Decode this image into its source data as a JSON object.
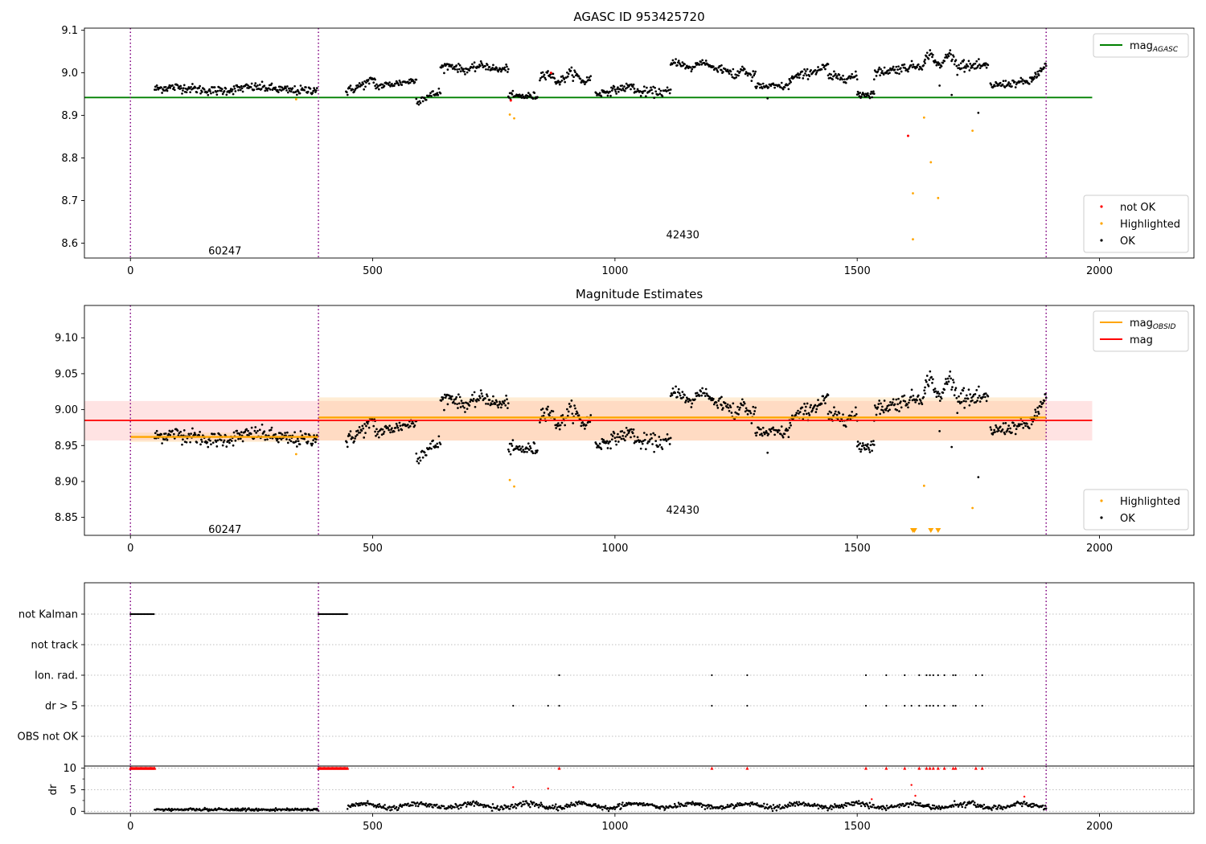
{
  "chart_data": [
    {
      "type": "scatter",
      "title": "AGASC ID 953425720",
      "xlim": [
        -95,
        2195
      ],
      "ylim": [
        8.565,
        9.105
      ],
      "x_ticks": [
        0,
        500,
        1000,
        1500,
        2000
      ],
      "y_ticks": [
        8.6,
        8.7,
        8.8,
        8.9,
        9.0,
        9.1
      ],
      "y_tick_labels": [
        "8.6",
        "8.7",
        "8.8",
        "8.9",
        "9.0",
        "9.1"
      ],
      "obsid_boundaries": [
        0,
        388,
        1890
      ],
      "obsid_labels": [
        {
          "text": "60247",
          "x": 195,
          "y": 8.583
        },
        {
          "text": "42430",
          "x": 1140,
          "y": 8.621
        }
      ],
      "reference_lines": [
        {
          "name": "mag_AGASC",
          "value": 8.942,
          "x_range": [
            -95,
            1985
          ],
          "color": "#008000"
        }
      ],
      "ok_segments": [
        {
          "x0": 50,
          "x1": 385,
          "base": 8.962,
          "noise": 0.012,
          "wave": 0.004,
          "n": 220
        },
        {
          "x0": 445,
          "x1": 505,
          "base": 8.97,
          "noise": 0.012,
          "trend": 0.03,
          "n": 40
        },
        {
          "x0": 505,
          "x1": 590,
          "base": 8.975,
          "noise": 0.01,
          "trend": 0.015,
          "n": 55
        },
        {
          "x0": 590,
          "x1": 640,
          "base": 8.945,
          "noise": 0.012,
          "trend": 0.02,
          "n": 30
        },
        {
          "x0": 640,
          "x1": 780,
          "base": 9.012,
          "noise": 0.01,
          "wave": 0.005,
          "n": 95
        },
        {
          "x0": 780,
          "x1": 840,
          "base": 8.945,
          "noise": 0.01,
          "n": 40
        },
        {
          "x0": 845,
          "x1": 950,
          "base": 8.99,
          "noise": 0.012,
          "wave": 0.01,
          "n": 70
        },
        {
          "x0": 960,
          "x1": 1040,
          "base": 8.96,
          "noise": 0.01,
          "trend": 0.02,
          "n": 55
        },
        {
          "x0": 1040,
          "x1": 1115,
          "base": 8.955,
          "noise": 0.012,
          "n": 45
        },
        {
          "x0": 1115,
          "x1": 1220,
          "base": 9.018,
          "noise": 0.01,
          "wave": 0.008,
          "n": 70
        },
        {
          "x0": 1220,
          "x1": 1290,
          "base": 9.0,
          "noise": 0.012,
          "wave": 0.01,
          "n": 45
        },
        {
          "x0": 1290,
          "x1": 1360,
          "base": 8.968,
          "noise": 0.01,
          "n": 45
        },
        {
          "x0": 1360,
          "x1": 1440,
          "base": 9.0,
          "noise": 0.012,
          "trend": 0.03,
          "n": 55
        },
        {
          "x0": 1440,
          "x1": 1500,
          "base": 8.99,
          "noise": 0.012,
          "n": 40
        },
        {
          "x0": 1500,
          "x1": 1535,
          "base": 8.95,
          "noise": 0.012,
          "n": 25
        },
        {
          "x0": 1535,
          "x1": 1640,
          "base": 9.01,
          "noise": 0.012,
          "trend": 0.02,
          "n": 70
        },
        {
          "x0": 1640,
          "x1": 1720,
          "base": 9.03,
          "noise": 0.012,
          "wave": 0.015,
          "n": 55
        },
        {
          "x0": 1720,
          "x1": 1770,
          "base": 9.015,
          "noise": 0.012,
          "n": 35
        },
        {
          "x0": 1775,
          "x1": 1860,
          "base": 8.975,
          "noise": 0.01,
          "trend": 0.01,
          "n": 55
        },
        {
          "x0": 1860,
          "x1": 1890,
          "base": 9.0,
          "noise": 0.012,
          "trend": 0.03,
          "n": 25
        }
      ],
      "outliers": [
        {
          "x": 1695,
          "y": 8.948
        },
        {
          "x": 1750,
          "y": 8.906
        },
        {
          "x": 1315,
          "y": 8.94
        },
        {
          "x": 1670,
          "y": 8.97
        }
      ],
      "highlighted_points": [
        {
          "x": 342,
          "y": 8.938
        },
        {
          "x": 783,
          "y": 8.902
        },
        {
          "x": 792,
          "y": 8.893
        },
        {
          "x": 1615,
          "y": 8.717
        },
        {
          "x": 1615,
          "y": 8.609
        },
        {
          "x": 1638,
          "y": 8.895
        },
        {
          "x": 1652,
          "y": 8.79
        },
        {
          "x": 1667,
          "y": 8.706
        },
        {
          "x": 1738,
          "y": 8.864
        }
      ],
      "not_ok_points": [
        {
          "x": 1605,
          "y": 8.852
        },
        {
          "x": 868,
          "y": 9.0
        },
        {
          "x": 785,
          "y": 8.935
        }
      ],
      "legends": [
        {
          "placement": "upper right",
          "entries": [
            {
              "label_main": "mag",
              "label_sub": "AGASC",
              "type": "line",
              "color": "#008000"
            }
          ]
        },
        {
          "placement": "lower right",
          "entries": [
            {
              "label": "not OK",
              "type": "marker",
              "color": "#ff0000"
            },
            {
              "label": "Highlighted",
              "type": "marker",
              "color": "#ffa500"
            },
            {
              "label": "OK",
              "type": "marker",
              "color": "#000000"
            }
          ]
        }
      ]
    },
    {
      "type": "scatter",
      "title": "Magnitude Estimates",
      "xlim": [
        -95,
        2195
      ],
      "ylim": [
        8.825,
        9.145
      ],
      "x_ticks": [
        0,
        500,
        1000,
        1500,
        2000
      ],
      "y_ticks": [
        8.85,
        8.9,
        8.95,
        9.0,
        9.05,
        9.1
      ],
      "y_tick_labels": [
        "8.85",
        "8.90",
        "8.95",
        "9.00",
        "9.05",
        "9.10"
      ],
      "obsid_boundaries": [
        0,
        388,
        1890
      ],
      "obsid_labels": [
        {
          "text": "60247",
          "x": 195,
          "y": 8.834
        },
        {
          "text": "42430",
          "x": 1140,
          "y": 8.861
        }
      ],
      "bands": [
        {
          "x_range": [
            -95,
            1985
          ],
          "y_range": [
            8.957,
            9.012
          ],
          "color": "#ffb0b0",
          "opacity": 0.35
        },
        {
          "x_range": [
            388,
            1890
          ],
          "y_range": [
            8.957,
            9.017
          ],
          "color": "#ffcc88",
          "opacity": 0.35
        },
        {
          "x_range": [
            0,
            388
          ],
          "y_range": [
            8.955,
            8.968
          ],
          "color": "#ffcc88",
          "opacity": 0.35
        }
      ],
      "reference_lines": [
        {
          "name": "mag",
          "value": 8.985,
          "x_range": [
            -95,
            1985
          ],
          "color": "#ff0000"
        },
        {
          "name": "mag_OBSID_60247",
          "value": 8.962,
          "x_range": [
            0,
            388
          ],
          "color": "#ffa500"
        },
        {
          "name": "mag_OBSID_42430",
          "value": 8.989,
          "x_range": [
            388,
            1890
          ],
          "color": "#ffa500"
        }
      ],
      "highlighted_points": [
        {
          "x": 342,
          "y": 8.938
        },
        {
          "x": 783,
          "y": 8.902
        },
        {
          "x": 792,
          "y": 8.893
        },
        {
          "x": 1638,
          "y": 8.894
        },
        {
          "x": 1738,
          "y": 8.863
        }
      ],
      "offscale_markers": [
        {
          "x": 1615
        },
        {
          "x": 1618
        },
        {
          "x": 1652
        },
        {
          "x": 1667
        }
      ],
      "legends": [
        {
          "placement": "upper right",
          "entries": [
            {
              "label_main": "mag",
              "label_sub": "OBSID",
              "type": "line",
              "color": "#ffa500"
            },
            {
              "label_main": "mag",
              "label_sub": "",
              "type": "line",
              "color": "#ff0000"
            }
          ]
        },
        {
          "placement": "lower right",
          "entries": [
            {
              "label": "Highlighted",
              "type": "marker",
              "color": "#ffa500"
            },
            {
              "label": "OK",
              "type": "marker",
              "color": "#000000"
            }
          ]
        }
      ]
    },
    {
      "type": "scatter",
      "title": "",
      "xlim": [
        -95,
        2195
      ],
      "x_ticks": [
        0,
        500,
        1000,
        1500,
        2000
      ],
      "obsid_boundaries": [
        0,
        388,
        1890
      ],
      "flag_rows": [
        "not Kalman",
        "not track",
        "Ion. rad.",
        "dr > 5",
        "OBS not OK"
      ],
      "flags": {
        "not Kalman": [
          [
            0,
            50
          ],
          [
            388,
            448
          ]
        ],
        "Ion. rad.": [
          885,
          1200,
          1273,
          1518,
          1560,
          1598,
          1628,
          1643,
          1650,
          1657,
          1667,
          1680,
          1698,
          1703,
          1745,
          1758
        ],
        "dr > 5": [
          790,
          862,
          885,
          1200,
          1273,
          1518,
          1560,
          1598,
          1612,
          1628,
          1643,
          1650,
          1657,
          1667,
          1680,
          1698,
          1703,
          1745,
          1758
        ]
      }
    },
    {
      "type": "scatter",
      "title": "",
      "ylabel": "dr",
      "xlim": [
        -95,
        2195
      ],
      "ylim": [
        -0.5,
        10.5
      ],
      "x_ticks": [
        0,
        500,
        1000,
        1500,
        2000
      ],
      "x_tick_labels": [
        "0",
        "500",
        "1000",
        "1500",
        "2000"
      ],
      "y_ticks": [
        0,
        5,
        10
      ],
      "y_tick_labels": [
        "0",
        "5",
        "10"
      ],
      "obsid_boundaries": [
        0,
        388,
        1890
      ],
      "dr_segments": [
        {
          "x0": 50,
          "x1": 388,
          "base": 0.4,
          "noise": 0.35,
          "n": 220
        },
        {
          "x0": 448,
          "x1": 1890,
          "base": 1.3,
          "noise": 0.7,
          "n": 900
        }
      ],
      "capped_points": [
        {
          "range": [
            0,
            50
          ],
          "n": 26
        },
        {
          "range": [
            388,
            448
          ],
          "n": 30
        },
        {
          "x": 885
        },
        {
          "x": 1200
        },
        {
          "x": 1273
        },
        {
          "x": 1518
        },
        {
          "x": 1560
        },
        {
          "x": 1598
        },
        {
          "x": 1628
        },
        {
          "x": 1643
        },
        {
          "x": 1650
        },
        {
          "x": 1657
        },
        {
          "x": 1667
        },
        {
          "x": 1680
        },
        {
          "x": 1698
        },
        {
          "x": 1703
        },
        {
          "x": 1745
        },
        {
          "x": 1758
        }
      ],
      "red_points": [
        {
          "x": 790,
          "y": 5.6
        },
        {
          "x": 862,
          "y": 5.3
        },
        {
          "x": 1530,
          "y": 2.8
        },
        {
          "x": 1612,
          "y": 6.1
        },
        {
          "x": 1620,
          "y": 3.6
        },
        {
          "x": 1845,
          "y": 3.4
        }
      ]
    }
  ]
}
